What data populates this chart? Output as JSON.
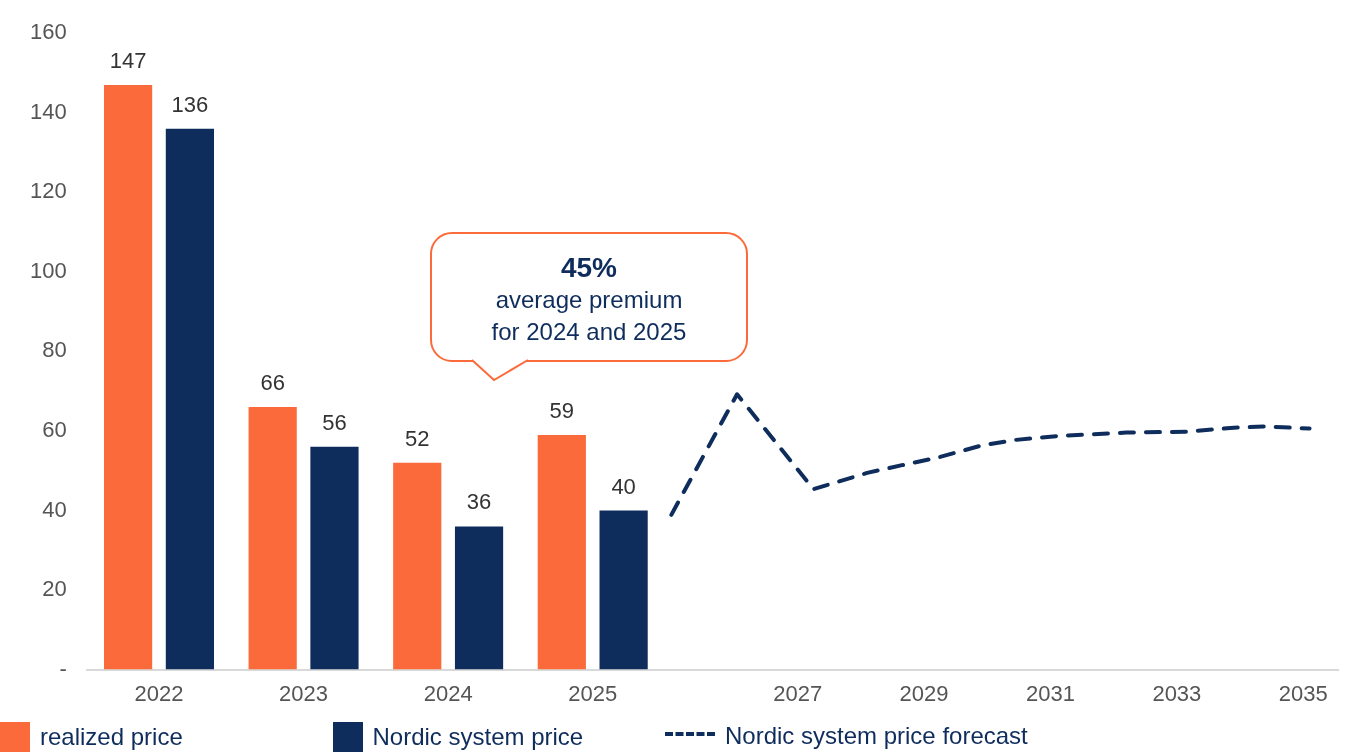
{
  "chart_data": [
    {
      "type": "bar",
      "categories": [
        "2022",
        "2023",
        "2024",
        "2025"
      ],
      "series": [
        {
          "name": "realized price",
          "color": "#fb6a3a",
          "values": [
            147,
            66,
            52,
            59
          ]
        },
        {
          "name": "Nordic system price",
          "color": "#0f2d5c",
          "values": [
            136,
            56,
            36,
            40
          ]
        }
      ],
      "ylim": [
        0,
        160
      ],
      "yticks": [
        {
          "value": 0,
          "label": "-"
        },
        20,
        40,
        60,
        80,
        100,
        120,
        140,
        160
      ],
      "data_labels": true,
      "grid": false,
      "legend": "bottom",
      "annotations": [
        "45%\naverage premium\nfor 2024 and 2025"
      ]
    },
    {
      "type": "line",
      "series": [
        {
          "name": "Nordic system price forecast",
          "color": "#0f2d5c",
          "line_style": "dashed",
          "x": [
            2025.0,
            2026.04,
            2027.25,
            2028.1,
            2028.65,
            2029.2,
            2029.9,
            2030.45,
            2031.15,
            2032.2,
            2033.15,
            2033.9,
            2034.4,
            2035.1
          ],
          "values": [
            38,
            67.6,
            44.3,
            48.3,
            50.2,
            52,
            55,
            56.4,
            57.4,
            58.2,
            58.4,
            59.4,
            59.7,
            59.2
          ]
        }
      ],
      "xlim": [
        2024.9,
        2035.55
      ],
      "xticks": [
        2027,
        2029,
        2031,
        2033,
        2035
      ],
      "ylim": [
        0,
        160
      ],
      "tick_labels": "x",
      "grid": false,
      "legend": "bottom",
      "marker": "none"
    }
  ]
}
